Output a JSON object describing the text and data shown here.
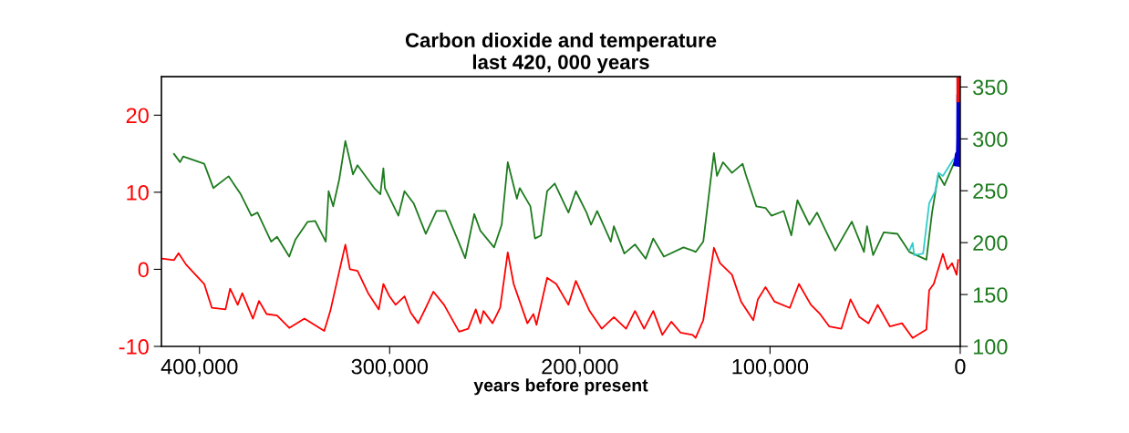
{
  "chart_data": {
    "type": "line",
    "title": "Carbon dioxide and temperature\nlast 420, 000 years",
    "xlabel": "years before present",
    "xlim": [
      420000,
      0
    ],
    "xticks": [
      {
        "value": 400000,
        "label": "400,000"
      },
      {
        "value": 300000,
        "label": "300,000"
      },
      {
        "value": 200000,
        "label": "200,000"
      },
      {
        "value": 100000,
        "label": "100,000"
      },
      0
    ],
    "ylim": [
      -10,
      25
    ],
    "yticks": [
      -10,
      0,
      10,
      20
    ],
    "y2lim": [
      100,
      360
    ],
    "y2ticks": [
      100,
      150,
      200,
      250,
      300,
      350
    ],
    "grid": false,
    "legend": false,
    "marker": "none",
    "line_style": "solid",
    "series": [
      {
        "color": "#ff0000",
        "axis": "y",
        "x": [
          419800,
          413400,
          411000,
          407000,
          397500,
          393500,
          386300,
          383900,
          379900,
          377500,
          371900,
          368700,
          364700,
          359200,
          352800,
          344800,
          334400,
          331200,
          325700,
          323300,
          320900,
          316900,
          311300,
          305700,
          303300,
          300100,
          296900,
          292200,
          289000,
          285000,
          281000,
          277000,
          271400,
          263500,
          258700,
          254700,
          252300,
          250700,
          245900,
          241900,
          237900,
          234800,
          227600,
          224400,
          222800,
          217200,
          212400,
          206000,
          202100,
          194900,
          188500,
          182100,
          175700,
          171000,
          166200,
          161400,
          156600,
          151900,
          147100,
          140700,
          139100,
          135100,
          129500,
          126300,
          120000,
          115200,
          108800,
          106400,
          102400,
          97600,
          89600,
          84800,
          78500,
          73700,
          68900,
          62500,
          57700,
          53000,
          48200,
          43400,
          37000,
          30600,
          25000,
          17800,
          16300,
          13900,
          9100,
          6700,
          4300,
          1900,
          1100
        ],
        "values": [
          1.4,
          1.2,
          2.1,
          0.6,
          -1.9,
          -5.0,
          -5.2,
          -2.5,
          -4.6,
          -3.1,
          -6.4,
          -4.1,
          -5.8,
          -6.0,
          -7.6,
          -6.4,
          -8.0,
          -5.4,
          0.6,
          3.2,
          0.0,
          -0.2,
          -3.1,
          -5.2,
          -1.9,
          -3.5,
          -4.6,
          -3.5,
          -5.6,
          -7.0,
          -5.0,
          -2.9,
          -4.6,
          -8.1,
          -7.7,
          -5.2,
          -7.0,
          -5.4,
          -7.0,
          -5.0,
          2.2,
          -1.9,
          -7.0,
          -5.8,
          -7.2,
          -1.1,
          -1.9,
          -4.6,
          -1.5,
          -5.4,
          -7.7,
          -6.2,
          -7.7,
          -5.4,
          -7.7,
          -5.4,
          -8.5,
          -6.8,
          -8.2,
          -8.5,
          -8.9,
          -6.6,
          2.8,
          0.8,
          -0.7,
          -4.2,
          -6.6,
          -3.9,
          -2.3,
          -4.2,
          -5.0,
          -1.9,
          -4.6,
          -5.8,
          -7.4,
          -7.7,
          -3.9,
          -6.2,
          -7.0,
          -4.6,
          -7.4,
          -7.0,
          -8.9,
          -7.8,
          -2.7,
          -1.9,
          2.0,
          0.0,
          0.8,
          -0.7,
          1.2
        ]
      },
      {
        "color": "#1e7b1e",
        "axis": "y2",
        "x": [
          413400,
          410200,
          408600,
          397500,
          392700,
          384700,
          378300,
          372700,
          369500,
          362300,
          359200,
          352800,
          349600,
          343200,
          339200,
          333600,
          332100,
          329700,
          326500,
          323300,
          320900,
          319300,
          316900,
          308100,
          304900,
          303300,
          302500,
          295400,
          292200,
          287400,
          281000,
          275400,
          270600,
          263500,
          260300,
          255500,
          252300,
          245100,
          241100,
          237900,
          233100,
          231600,
          226000,
          223600,
          220400,
          217200,
          213200,
          206000,
          202100,
          196500,
          194100,
          190900,
          183700,
          182100,
          176600,
          171000,
          165400,
          161400,
          155800,
          145500,
          140700,
          139100,
          135100,
          129500,
          127900,
          124700,
          120000,
          114400,
          112800,
          107200,
          102400,
          99200,
          92800,
          88800,
          85600,
          79300,
          75300,
          65700,
          57000,
          50600,
          49000,
          45800,
          40200,
          33000,
          26700,
          17800,
          14800,
          11500,
          8300,
          2700
        ],
        "values": [
          285.5,
          277.6,
          283,
          276,
          252.6,
          264,
          246.7,
          226,
          229,
          201,
          205.6,
          186.5,
          202.7,
          220,
          221,
          201,
          249.6,
          235,
          261,
          298,
          279,
          265.8,
          274.6,
          252.6,
          246.7,
          271.7,
          252.6,
          226,
          249.6,
          238,
          208.5,
          230.5,
          230.5,
          199.7,
          185,
          227.6,
          211.5,
          195.4,
          217.3,
          277.5,
          242.3,
          252.6,
          235,
          204,
          207,
          249.6,
          257,
          229,
          249.6,
          229,
          217.3,
          230.5,
          201,
          215.8,
          189.5,
          198.3,
          184.5,
          204,
          186.5,
          195.4,
          192.4,
          191,
          201,
          286.4,
          264.3,
          277.5,
          267.3,
          276,
          265.8,
          235,
          233.5,
          226,
          230.5,
          207,
          240.8,
          217.3,
          229,
          192.4,
          220.3,
          191,
          215.8,
          188,
          210,
          208.5,
          191,
          183.6,
          229,
          265.8,
          255.5,
          279
        ]
      },
      {
        "color": "#33cccc",
        "axis": "y2",
        "x": [
          26700,
          25000,
          24200,
          19500,
          16300,
          13100,
          11500,
          9100,
          5100,
          3500
        ],
        "values": [
          192.4,
          199.7,
          188,
          189.5,
          238,
          249.6,
          267.3,
          264.3,
          276,
          280.5
        ]
      },
      {
        "color": "#0000cc",
        "axis": "y2",
        "x": [
          1500,
          800,
          300,
          100,
          0
        ],
        "values": [
          277,
          285,
          280,
          300,
          339
        ]
      },
      {
        "color": "#ee1111",
        "axis": "y2",
        "x": [
          0,
          0
        ],
        "values": [
          339,
          360
        ]
      }
    ]
  }
}
